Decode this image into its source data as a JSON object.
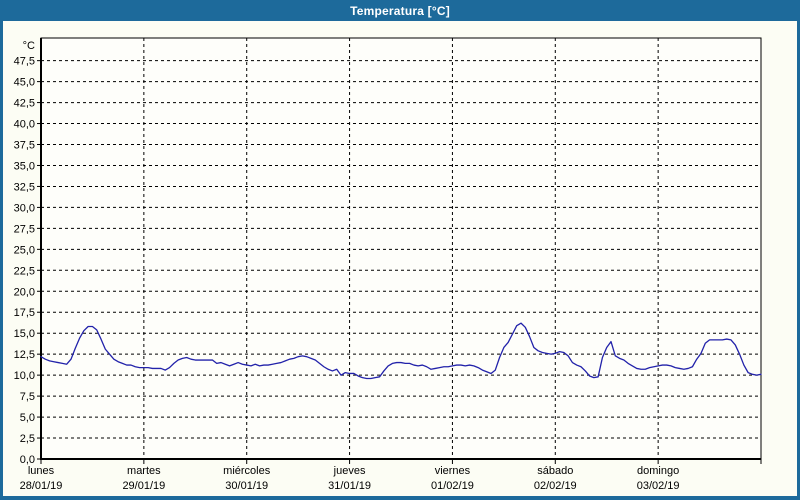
{
  "window": {
    "title": "Temperatura [°C]"
  },
  "colors": {
    "titlebar": "#1d6a9b",
    "frame": "#1d6a9b",
    "client_bg": "#fcfdf4",
    "plot_bg": "#fefefa",
    "grid": "#000000",
    "axis": "#000000",
    "line": "#2222aa",
    "label_text": "#000000"
  },
  "chart_data": {
    "type": "line",
    "title": "Temperatura [°C]",
    "y_unit_label": "°C",
    "ylim": [
      0,
      50.2
    ],
    "y_tick_step": 2.5,
    "y_tick_labels": [
      "0,0",
      "2,5",
      "5,0",
      "7,5",
      "10,0",
      "12,5",
      "15,0",
      "17,5",
      "20,0",
      "22,5",
      "25,0",
      "27,5",
      "30,0",
      "32,5",
      "35,0",
      "37,5",
      "40,0",
      "42,5",
      "45,0",
      "47,5"
    ],
    "grid": "dashed",
    "legend": "none",
    "days": [
      {
        "name": "lunes",
        "date": "28/01/19"
      },
      {
        "name": "martes",
        "date": "29/01/19"
      },
      {
        "name": "miércoles",
        "date": "30/01/19"
      },
      {
        "name": "jueves",
        "date": "31/01/19"
      },
      {
        "name": "viernes",
        "date": "01/02/19"
      },
      {
        "name": "sábado",
        "date": "02/02/19"
      },
      {
        "name": "domingo",
        "date": "03/02/19"
      }
    ],
    "series": [
      {
        "name": "Temperatura",
        "unit": "°C",
        "x_unit": "hours_from_monday_00h",
        "x_step_hours": 1,
        "values": [
          12.2,
          11.9,
          11.7,
          11.6,
          11.5,
          11.4,
          11.3,
          11.9,
          13.2,
          14.4,
          15.3,
          15.8,
          15.8,
          15.4,
          14.3,
          13.1,
          12.5,
          11.9,
          11.6,
          11.4,
          11.2,
          11.2,
          11.0,
          10.9,
          10.9,
          10.9,
          10.8,
          10.8,
          10.8,
          10.6,
          10.9,
          11.4,
          11.8,
          12.0,
          12.1,
          11.9,
          11.8,
          11.8,
          11.8,
          11.8,
          11.8,
          11.4,
          11.5,
          11.3,
          11.1,
          11.3,
          11.5,
          11.3,
          11.2,
          11.1,
          11.3,
          11.1,
          11.2,
          11.2,
          11.3,
          11.4,
          11.5,
          11.7,
          11.9,
          12.0,
          12.2,
          12.3,
          12.2,
          12.0,
          11.8,
          11.4,
          11.0,
          10.7,
          10.5,
          10.7,
          10.0,
          10.3,
          10.2,
          10.2,
          9.9,
          9.7,
          9.6,
          9.6,
          9.7,
          9.8,
          10.5,
          11.1,
          11.4,
          11.5,
          11.5,
          11.4,
          11.4,
          11.2,
          11.1,
          11.2,
          11.0,
          10.7,
          10.8,
          10.9,
          11.0,
          11.0,
          11.1,
          11.2,
          11.2,
          11.1,
          11.2,
          11.1,
          10.9,
          10.6,
          10.4,
          10.2,
          10.6,
          12.1,
          13.3,
          13.9,
          14.9,
          15.9,
          16.2,
          15.7,
          14.6,
          13.3,
          12.9,
          12.7,
          12.6,
          12.5,
          12.6,
          12.8,
          12.7,
          12.3,
          11.5,
          11.2,
          11.0,
          10.5,
          9.9,
          9.7,
          9.8,
          12.1,
          13.3,
          14.0,
          12.3,
          12.0,
          11.8,
          11.4,
          11.1,
          10.8,
          10.7,
          10.7,
          10.9,
          11.0,
          11.1,
          11.2,
          11.2,
          11.1,
          10.9,
          10.8,
          10.7,
          10.8,
          11.0,
          11.9,
          12.6,
          13.8,
          14.2,
          14.2,
          14.2,
          14.2,
          14.3,
          14.2,
          13.6,
          12.5,
          11.2,
          10.3,
          10.1,
          10.0,
          10.1
        ]
      }
    ]
  }
}
